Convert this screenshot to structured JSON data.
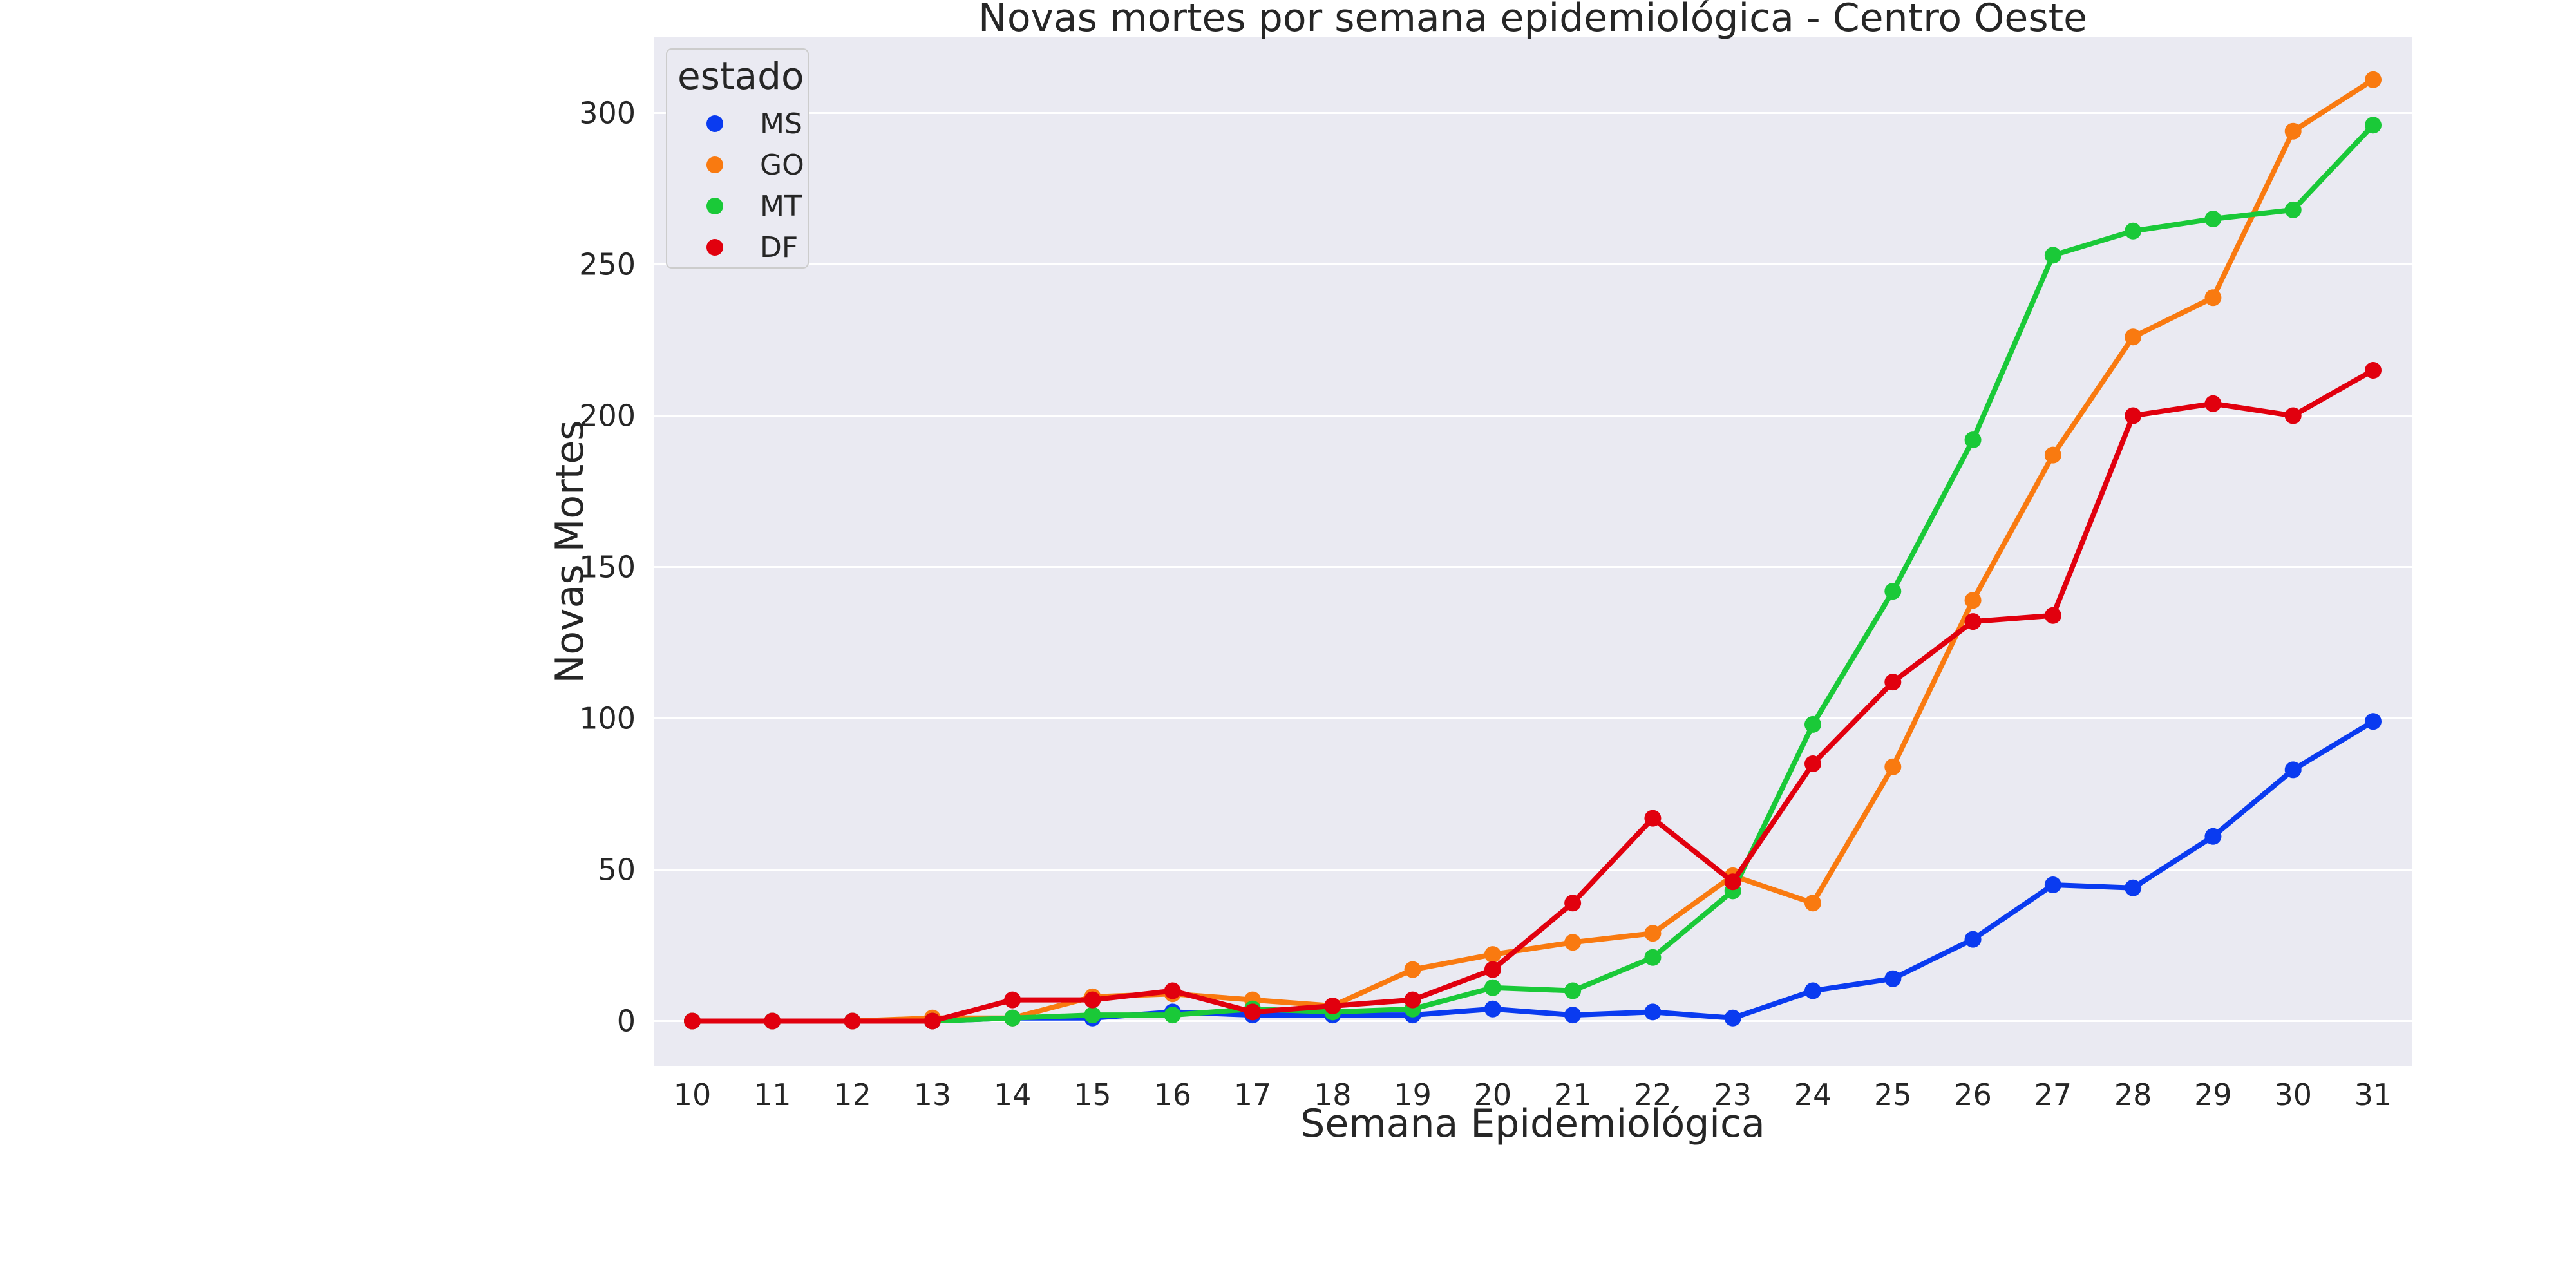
{
  "chart_data": {
    "type": "line",
    "title": "Novas mortes por semana epidemiológica - Centro Oeste",
    "xlabel": "Semana Epidemiológica",
    "ylabel": "Novas Mortes",
    "x": [
      10,
      11,
      12,
      13,
      14,
      15,
      16,
      17,
      18,
      19,
      20,
      21,
      22,
      23,
      24,
      25,
      26,
      27,
      28,
      29,
      30,
      31
    ],
    "y_ticks": [
      0,
      50,
      100,
      150,
      200,
      250,
      300
    ],
    "ylim": [
      -15,
      325
    ],
    "grid": true,
    "legend": {
      "title": "estado",
      "position": "top-left"
    },
    "series": [
      {
        "name": "MS",
        "color": "#0a3bf0",
        "values": [
          0,
          0,
          0,
          0,
          1,
          1,
          3,
          2,
          2,
          2,
          4,
          2,
          3,
          1,
          10,
          14,
          27,
          45,
          44,
          61,
          83,
          99
        ]
      },
      {
        "name": "GO",
        "color": "#f97a10",
        "values": [
          0,
          0,
          0,
          1,
          1,
          8,
          9,
          7,
          5,
          17,
          22,
          26,
          29,
          48,
          39,
          84,
          139,
          187,
          226,
          239,
          294,
          311
        ]
      },
      {
        "name": "MT",
        "color": "#1ac938",
        "values": [
          0,
          0,
          0,
          0,
          1,
          2,
          2,
          4,
          3,
          4,
          11,
          10,
          21,
          43,
          98,
          142,
          192,
          253,
          261,
          265,
          268,
          296
        ]
      },
      {
        "name": "DF",
        "color": "#e1000e",
        "values": [
          0,
          0,
          0,
          0,
          7,
          7,
          10,
          3,
          5,
          7,
          17,
          39,
          67,
          46,
          85,
          112,
          132,
          134,
          200,
          204,
          200,
          215
        ]
      }
    ]
  }
}
